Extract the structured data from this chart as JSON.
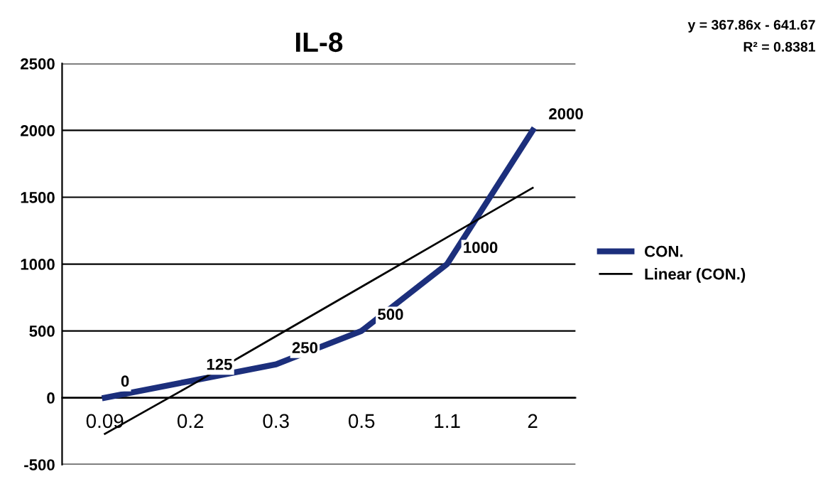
{
  "chart_data": {
    "type": "line",
    "title": "IL-8",
    "categories": [
      "0.09",
      "0.2",
      "0.3",
      "0.5",
      "1.1",
      "2"
    ],
    "series": [
      {
        "name": "CON.",
        "color": "#1c2f7c",
        "values": [
          0,
          125,
          250,
          500,
          1000,
          2000
        ],
        "value_labels": [
          "0",
          "125",
          "250",
          "500",
          "1000",
          "2000"
        ]
      },
      {
        "name": "Linear (CON.)",
        "color": "#000000",
        "values": [
          -270,
          90,
          460,
          830,
          1200,
          1570
        ]
      }
    ],
    "ylim": [
      -500,
      2500
    ],
    "yticks": [
      -500,
      0,
      500,
      1000,
      1500,
      2000,
      2500
    ],
    "grid": "y",
    "legend": "right",
    "annotations": [
      "y = 367.86x - 641.67",
      "R² = 0.8381"
    ]
  }
}
